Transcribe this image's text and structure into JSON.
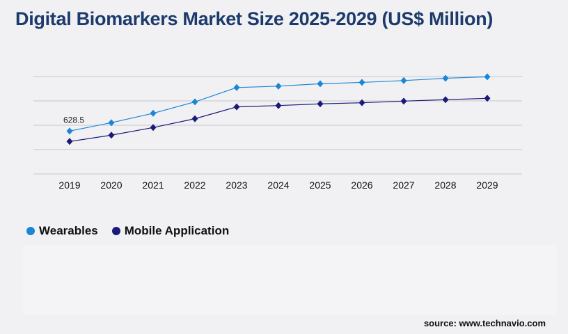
{
  "title": "Digital Biomarkers Market Size 2025-2029 (US$ Million)",
  "source": "source: www.technavio.com",
  "colors": {
    "wearables": "#1a86d6",
    "mobile": "#1b1a78",
    "grid": "#c8c8cc"
  },
  "chart_data": {
    "type": "line",
    "title": "Digital Biomarkers Market Size 2025-2029 (US$ Million)",
    "categories": [
      "2019",
      "2020",
      "2021",
      "2022",
      "2023",
      "2024",
      "2025",
      "2026",
      "2027",
      "2028",
      "2029"
    ],
    "series": [
      {
        "name": "Wearables",
        "values": [
          628.5,
          751,
          889,
          1056,
          1266,
          1286,
          1321,
          1341,
          1368,
          1402,
          1423
        ],
        "data_labels": [
          "628.5",
          "",
          "",
          "",
          "",
          "",
          "",
          "",
          "",
          "",
          ""
        ]
      },
      {
        "name": "Mobile Application",
        "values": [
          476,
          568,
          680,
          809,
          982,
          1002,
          1027,
          1043,
          1067,
          1088,
          1108
        ]
      }
    ],
    "ylim": [
      0,
      1427
    ],
    "y_gridlines": 5,
    "y_tick_labels_shown": false,
    "grid": true,
    "legend": "bottom-left",
    "marker": "diamond"
  }
}
